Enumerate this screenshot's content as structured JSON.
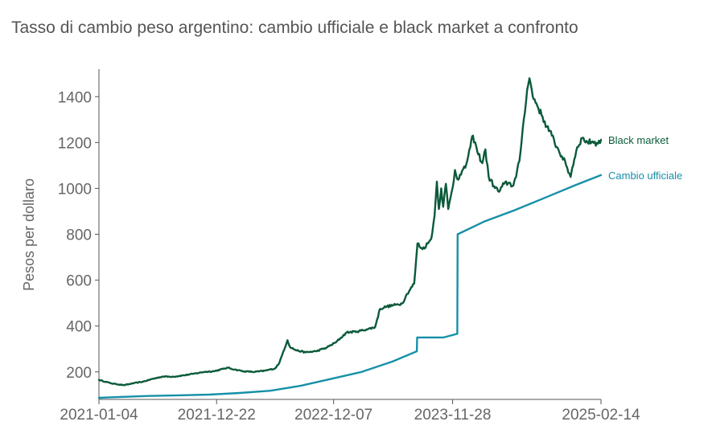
{
  "chart_data": {
    "type": "line",
    "title": "Tasso di cambio peso argentino: cambio ufficiale e black market a confronto",
    "xlabel": "",
    "ylabel": "Pesos per dollaro",
    "x_tick_labels": [
      "2021-01-04",
      "2021-12-22",
      "2022-12-07",
      "2023-11-28",
      "2025-02-14"
    ],
    "y_ticks": [
      200,
      400,
      600,
      800,
      1000,
      1200,
      1400
    ],
    "xlim": [
      "2021-01-04",
      "2025-02-14"
    ],
    "ylim": [
      80,
      1520
    ],
    "grid": false,
    "legend": "labels at line ends (right)",
    "colors": {
      "black_market": "#0b5a3a",
      "cambio_ufficiale": "#1690a8",
      "axis": "#555555"
    },
    "series": [
      {
        "name": "Black market",
        "color": "#0b5a3a",
        "points": [
          [
            "2021-01-04",
            165
          ],
          [
            "2021-02-10",
            150
          ],
          [
            "2021-03-20",
            142
          ],
          [
            "2021-04-15",
            150
          ],
          [
            "2021-05-15",
            157
          ],
          [
            "2021-06-15",
            170
          ],
          [
            "2021-07-15",
            180
          ],
          [
            "2021-08-15",
            179
          ],
          [
            "2021-09-15",
            185
          ],
          [
            "2021-10-15",
            192
          ],
          [
            "2021-11-15",
            200
          ],
          [
            "2021-12-15",
            203
          ],
          [
            "2022-01-10",
            213
          ],
          [
            "2022-01-25",
            218
          ],
          [
            "2022-02-15",
            210
          ],
          [
            "2022-03-15",
            202
          ],
          [
            "2022-04-15",
            200
          ],
          [
            "2022-05-15",
            205
          ],
          [
            "2022-06-15",
            215
          ],
          [
            "2022-06-28",
            240
          ],
          [
            "2022-07-10",
            290
          ],
          [
            "2022-07-22",
            338
          ],
          [
            "2022-07-29",
            310
          ],
          [
            "2022-08-15",
            295
          ],
          [
            "2022-09-15",
            285
          ],
          [
            "2022-10-15",
            290
          ],
          [
            "2022-11-15",
            305
          ],
          [
            "2022-12-15",
            330
          ],
          [
            "2023-01-15",
            372
          ],
          [
            "2023-02-15",
            376
          ],
          [
            "2023-03-15",
            385
          ],
          [
            "2023-04-10",
            395
          ],
          [
            "2023-04-25",
            475
          ],
          [
            "2023-05-15",
            485
          ],
          [
            "2023-06-10",
            492
          ],
          [
            "2023-06-30",
            498
          ],
          [
            "2023-07-15",
            540
          ],
          [
            "2023-08-05",
            585
          ],
          [
            "2023-08-15",
            760
          ],
          [
            "2023-08-30",
            735
          ],
          [
            "2023-09-15",
            760
          ],
          [
            "2023-09-25",
            780
          ],
          [
            "2023-10-05",
            880
          ],
          [
            "2023-10-12",
            1030
          ],
          [
            "2023-10-18",
            910
          ],
          [
            "2023-10-25",
            1000
          ],
          [
            "2023-10-31",
            920
          ],
          [
            "2023-11-08",
            1020
          ],
          [
            "2023-11-15",
            910
          ],
          [
            "2023-11-22",
            960
          ],
          [
            "2023-11-29",
            1010
          ],
          [
            "2023-12-05",
            1080
          ],
          [
            "2023-12-12",
            1040
          ],
          [
            "2023-12-20",
            1060
          ],
          [
            "2024-01-05",
            1090
          ],
          [
            "2024-01-20",
            1180
          ],
          [
            "2024-01-28",
            1230
          ],
          [
            "2024-02-10",
            1160
          ],
          [
            "2024-02-25",
            1110
          ],
          [
            "2024-03-05",
            1170
          ],
          [
            "2024-03-15",
            1050
          ],
          [
            "2024-03-31",
            1010
          ],
          [
            "2024-04-15",
            985
          ],
          [
            "2024-04-30",
            1020
          ],
          [
            "2024-05-15",
            1025
          ],
          [
            "2024-05-25",
            1010
          ],
          [
            "2024-06-05",
            1050
          ],
          [
            "2024-06-15",
            1120
          ],
          [
            "2024-06-28",
            1300
          ],
          [
            "2024-07-08",
            1430
          ],
          [
            "2024-07-15",
            1480
          ],
          [
            "2024-07-25",
            1400
          ],
          [
            "2024-08-05",
            1370
          ],
          [
            "2024-08-20",
            1320
          ],
          [
            "2024-09-05",
            1270
          ],
          [
            "2024-09-20",
            1230
          ],
          [
            "2024-10-05",
            1180
          ],
          [
            "2024-10-20",
            1140
          ],
          [
            "2024-11-05",
            1090
          ],
          [
            "2024-11-15",
            1050
          ],
          [
            "2024-11-20",
            1090
          ],
          [
            "2024-12-05",
            1180
          ],
          [
            "2024-12-20",
            1220
          ],
          [
            "2025-01-05",
            1200
          ],
          [
            "2025-01-20",
            1205
          ],
          [
            "2025-02-05",
            1195
          ],
          [
            "2025-02-14",
            1212
          ]
        ]
      },
      {
        "name": "Cambio ufficiale",
        "color": "#1690a8",
        "points": [
          [
            "2021-01-04",
            87
          ],
          [
            "2021-03-01",
            90
          ],
          [
            "2021-06-01",
            95
          ],
          [
            "2021-09-01",
            98
          ],
          [
            "2021-12-01",
            101
          ],
          [
            "2022-03-01",
            108
          ],
          [
            "2022-06-01",
            118
          ],
          [
            "2022-09-01",
            140
          ],
          [
            "2022-12-01",
            170
          ],
          [
            "2023-03-01",
            200
          ],
          [
            "2023-06-01",
            245
          ],
          [
            "2023-08-13",
            290
          ],
          [
            "2023-08-14",
            350
          ],
          [
            "2023-10-01",
            350
          ],
          [
            "2023-11-01",
            350
          ],
          [
            "2023-12-12",
            366
          ],
          [
            "2023-12-13",
            800
          ],
          [
            "2024-03-01",
            855
          ],
          [
            "2024-06-01",
            905
          ],
          [
            "2024-09-01",
            960
          ],
          [
            "2024-12-01",
            1015
          ],
          [
            "2025-02-14",
            1058
          ]
        ]
      }
    ]
  }
}
